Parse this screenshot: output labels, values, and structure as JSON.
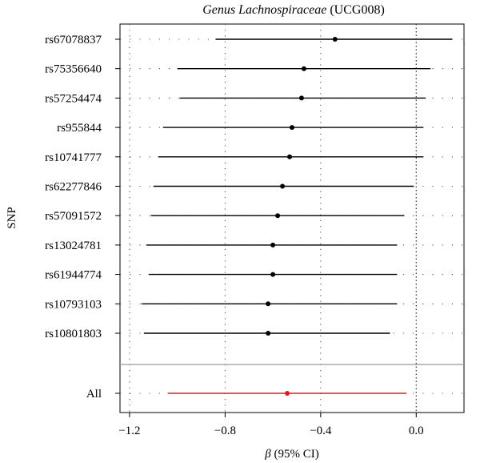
{
  "chart_data": {
    "type": "forest",
    "title": {
      "italic": "Genus Lachnospiraceae",
      "plain": " (UCG008)"
    },
    "xlabel": {
      "symbol": "β",
      "text": " (95% CI)"
    },
    "ylabel": "SNP",
    "xlim": [
      -1.24,
      0.2
    ],
    "xticks": [
      -1.2,
      -0.8,
      -0.4,
      0.0
    ],
    "xtick_labels": [
      "−1.2",
      "−0.8",
      "−0.4",
      "0.0"
    ],
    "reference_line": 0.0,
    "grid": "dotted",
    "snps": [
      {
        "name": "rs67078837",
        "beta": -0.34,
        "lo": -0.84,
        "hi": 0.15
      },
      {
        "name": "rs75356640",
        "beta": -0.47,
        "lo": -1.0,
        "hi": 0.06
      },
      {
        "name": "rs57254474",
        "beta": -0.48,
        "lo": -0.99,
        "hi": 0.04
      },
      {
        "name": "rs955844",
        "beta": -0.52,
        "lo": -1.06,
        "hi": 0.03
      },
      {
        "name": "rs10741777",
        "beta": -0.53,
        "lo": -1.08,
        "hi": 0.03
      },
      {
        "name": "rs62277846",
        "beta": -0.56,
        "lo": -1.1,
        "hi": -0.01
      },
      {
        "name": "rs57091572",
        "beta": -0.58,
        "lo": -1.11,
        "hi": -0.05
      },
      {
        "name": "rs13024781",
        "beta": -0.6,
        "lo": -1.13,
        "hi": -0.08
      },
      {
        "name": "rs61944774",
        "beta": -0.6,
        "lo": -1.12,
        "hi": -0.08
      },
      {
        "name": "rs10793103",
        "beta": -0.62,
        "lo": -1.15,
        "hi": -0.08
      },
      {
        "name": "rs10801803",
        "beta": -0.62,
        "lo": -1.14,
        "hi": -0.11
      }
    ],
    "overall": {
      "name": "All",
      "beta": -0.54,
      "lo": -1.04,
      "hi": -0.04
    },
    "colors": {
      "snp": "#000000",
      "overall": "#e41a1c",
      "separator": "#999999",
      "grid": "#555555"
    }
  }
}
